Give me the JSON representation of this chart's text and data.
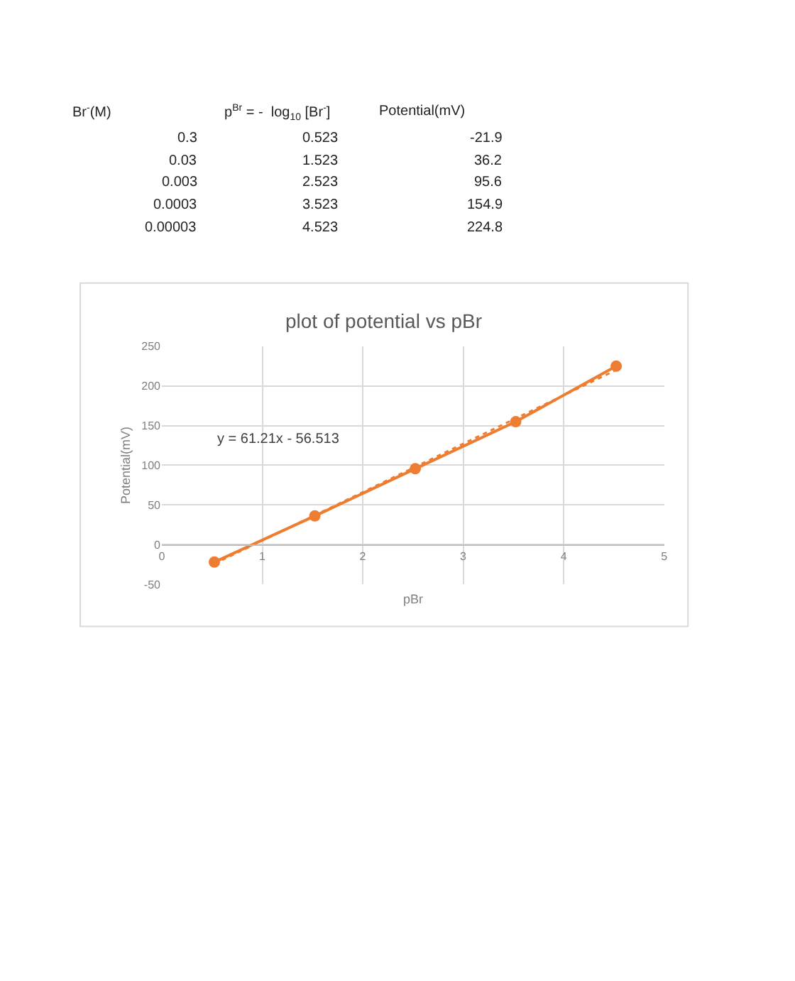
{
  "chart_data": {
    "type": "line",
    "title": "plot of potential vs pBr",
    "xlabel": "pBr",
    "ylabel": "Potential(mV)",
    "x": [
      0.523,
      1.523,
      2.523,
      3.523,
      4.523
    ],
    "series": [
      {
        "color": "#ed7d31",
        "values": [
          -21.9,
          36.2,
          95.6,
          154.9,
          224.8
        ],
        "marker": "circle",
        "line_style": "solid"
      },
      {
        "color": "#ed7d31",
        "x": [
          0.523,
          4.523
        ],
        "values": [
          -24,
          220
        ],
        "marker": "none",
        "line_style": "dotted"
      }
    ],
    "annotations": [
      "Br$^{-}$(M)",
      "p$^{Br}$ = -  log$_{10}$ [Br$^{-}$]",
      "Potential(mV)",
      "0.3",
      "0.523",
      "-21.9",
      "0.03",
      "1.523",
      "36.2",
      "0.003",
      "2.523",
      "95.6",
      "0.0003",
      "3.523",
      "154.9",
      "0.00003",
      "4.523",
      "224.8",
      "y = 61.21x - 56.513"
    ],
    "xlim": [
      0,
      5
    ],
    "xticks": [
      0,
      1,
      2,
      3,
      4,
      5
    ],
    "ylim": [
      -50,
      250
    ],
    "yticks": [
      -50,
      0,
      50,
      100,
      150,
      200,
      250
    ],
    "grid": true
  }
}
